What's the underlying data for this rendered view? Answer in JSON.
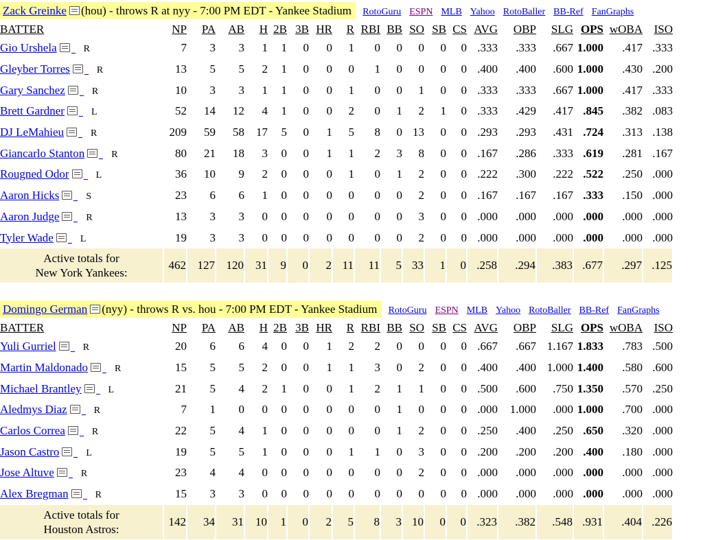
{
  "columns": [
    "BATTER",
    "NP",
    "PA",
    "AB",
    "H",
    "2B",
    "3B",
    "HR",
    "R",
    "RBI",
    "BB",
    "SO",
    "SB",
    "CS",
    "AVG",
    "OBP",
    "SLG",
    "OPS",
    "wOBA",
    "ISO"
  ],
  "sections": [
    {
      "pitcher": "Zack Greinke",
      "matchup": "(hou) - throws R at nyy - 7:00 PM EDT - Yankee Stadium",
      "links": [
        "RotoGuru",
        "ESPN",
        "MLB",
        "Yahoo",
        "RotoBaller",
        "BB-Ref",
        "FanGraphs"
      ],
      "rows": [
        {
          "name": "Gio Urshela",
          "hand": "R",
          "stats": [
            "7",
            "3",
            "3",
            "1",
            "1",
            "0",
            "0",
            "1",
            "0",
            "0",
            "0",
            "0",
            "0",
            ".333",
            ".333",
            ".667",
            "1.000",
            ".417",
            ".333"
          ]
        },
        {
          "name": "Gleyber Torres",
          "hand": "R",
          "stats": [
            "13",
            "5",
            "5",
            "2",
            "1",
            "0",
            "0",
            "0",
            "1",
            "0",
            "0",
            "0",
            "0",
            ".400",
            ".400",
            ".600",
            "1.000",
            ".430",
            ".200"
          ]
        },
        {
          "name": "Gary Sanchez",
          "hand": "R",
          "stats": [
            "10",
            "3",
            "3",
            "1",
            "1",
            "0",
            "0",
            "1",
            "0",
            "0",
            "1",
            "0",
            "0",
            ".333",
            ".333",
            ".667",
            "1.000",
            ".417",
            ".333"
          ]
        },
        {
          "name": "Brett Gardner",
          "hand": "L",
          "stats": [
            "52",
            "14",
            "12",
            "4",
            "1",
            "0",
            "0",
            "2",
            "0",
            "1",
            "2",
            "1",
            "0",
            ".333",
            ".429",
            ".417",
            ".845",
            ".382",
            ".083"
          ]
        },
        {
          "name": "DJ LeMahieu",
          "hand": "R",
          "stats": [
            "209",
            "59",
            "58",
            "17",
            "5",
            "0",
            "1",
            "5",
            "8",
            "0",
            "13",
            "0",
            "0",
            ".293",
            ".293",
            ".431",
            ".724",
            ".313",
            ".138"
          ]
        },
        {
          "name": "Giancarlo Stanton",
          "hand": "R",
          "stats": [
            "80",
            "21",
            "18",
            "3",
            "0",
            "0",
            "1",
            "1",
            "2",
            "3",
            "8",
            "0",
            "0",
            ".167",
            ".286",
            ".333",
            ".619",
            ".281",
            ".167"
          ]
        },
        {
          "name": "Rougned Odor",
          "hand": "L",
          "stats": [
            "36",
            "10",
            "9",
            "2",
            "0",
            "0",
            "0",
            "1",
            "0",
            "1",
            "2",
            "0",
            "0",
            ".222",
            ".300",
            ".222",
            ".522",
            ".250",
            ".000"
          ]
        },
        {
          "name": "Aaron Hicks",
          "hand": "S",
          "stats": [
            "23",
            "6",
            "6",
            "1",
            "0",
            "0",
            "0",
            "0",
            "0",
            "0",
            "2",
            "0",
            "0",
            ".167",
            ".167",
            ".167",
            ".333",
            ".150",
            ".000"
          ]
        },
        {
          "name": "Aaron Judge",
          "hand": "R",
          "stats": [
            "13",
            "3",
            "3",
            "0",
            "0",
            "0",
            "0",
            "0",
            "0",
            "0",
            "3",
            "0",
            "0",
            ".000",
            ".000",
            ".000",
            ".000",
            ".000",
            ".000"
          ]
        },
        {
          "name": "Tyler Wade",
          "hand": "L",
          "stats": [
            "19",
            "3",
            "3",
            "0",
            "0",
            "0",
            "0",
            "0",
            "0",
            "0",
            "2",
            "0",
            "0",
            ".000",
            ".000",
            ".000",
            ".000",
            ".000",
            ".000"
          ]
        }
      ],
      "totals_label_1": "Active totals for",
      "totals_label_2": "New York Yankees:",
      "totals": [
        "462",
        "127",
        "120",
        "31",
        "9",
        "0",
        "2",
        "11",
        "11",
        "5",
        "33",
        "1",
        "0",
        ".258",
        ".294",
        ".383",
        ".677",
        ".297",
        ".125"
      ]
    },
    {
      "pitcher": "Domingo German",
      "matchup": "(nyy) - throws R vs. hou - 7:00 PM EDT - Yankee Stadium",
      "links": [
        "RotoGuru",
        "ESPN",
        "MLB",
        "Yahoo",
        "RotoBaller",
        "BB-Ref",
        "FanGraphs"
      ],
      "rows": [
        {
          "name": "Yuli Gurriel",
          "hand": "R",
          "stats": [
            "20",
            "6",
            "6",
            "4",
            "0",
            "0",
            "1",
            "2",
            "2",
            "0",
            "0",
            "0",
            "0",
            ".667",
            ".667",
            "1.167",
            "1.833",
            ".783",
            ".500"
          ]
        },
        {
          "name": "Martin Maldonado",
          "hand": "R",
          "stats": [
            "15",
            "5",
            "5",
            "2",
            "0",
            "0",
            "1",
            "1",
            "3",
            "0",
            "2",
            "0",
            "0",
            ".400",
            ".400",
            "1.000",
            "1.400",
            ".580",
            ".600"
          ]
        },
        {
          "name": "Michael Brantley",
          "hand": "L",
          "stats": [
            "21",
            "5",
            "4",
            "2",
            "1",
            "0",
            "0",
            "1",
            "2",
            "1",
            "1",
            "0",
            "0",
            ".500",
            ".600",
            ".750",
            "1.350",
            ".570",
            ".250"
          ]
        },
        {
          "name": "Aledmys Diaz",
          "hand": "R",
          "stats": [
            "7",
            "1",
            "0",
            "0",
            "0",
            "0",
            "0",
            "0",
            "0",
            "1",
            "0",
            "0",
            "0",
            ".000",
            "1.000",
            ".000",
            "1.000",
            ".700",
            ".000"
          ]
        },
        {
          "name": "Carlos Correa",
          "hand": "R",
          "stats": [
            "22",
            "5",
            "4",
            "1",
            "0",
            "0",
            "0",
            "0",
            "0",
            "1",
            "2",
            "0",
            "0",
            ".250",
            ".400",
            ".250",
            ".650",
            ".320",
            ".000"
          ]
        },
        {
          "name": "Jason Castro",
          "hand": "L",
          "stats": [
            "19",
            "5",
            "5",
            "1",
            "0",
            "0",
            "0",
            "1",
            "1",
            "0",
            "3",
            "0",
            "0",
            ".200",
            ".200",
            ".200",
            ".400",
            ".180",
            ".000"
          ]
        },
        {
          "name": "Jose Altuve",
          "hand": "R",
          "stats": [
            "23",
            "4",
            "4",
            "0",
            "0",
            "0",
            "0",
            "0",
            "0",
            "0",
            "2",
            "0",
            "0",
            ".000",
            ".000",
            ".000",
            ".000",
            ".000",
            ".000"
          ]
        },
        {
          "name": "Alex Bregman",
          "hand": "R",
          "stats": [
            "15",
            "3",
            "3",
            "0",
            "0",
            "0",
            "0",
            "0",
            "0",
            "0",
            "0",
            "0",
            "0",
            ".000",
            ".000",
            ".000",
            ".000",
            ".000",
            ".000"
          ]
        }
      ],
      "totals_label_1": "Active totals for",
      "totals_label_2": "Houston Astros:",
      "totals": [
        "142",
        "34",
        "31",
        "10",
        "1",
        "0",
        "2",
        "5",
        "8",
        "3",
        "10",
        "0",
        "0",
        ".323",
        ".382",
        ".548",
        ".931",
        ".404",
        ".226"
      ]
    }
  ]
}
